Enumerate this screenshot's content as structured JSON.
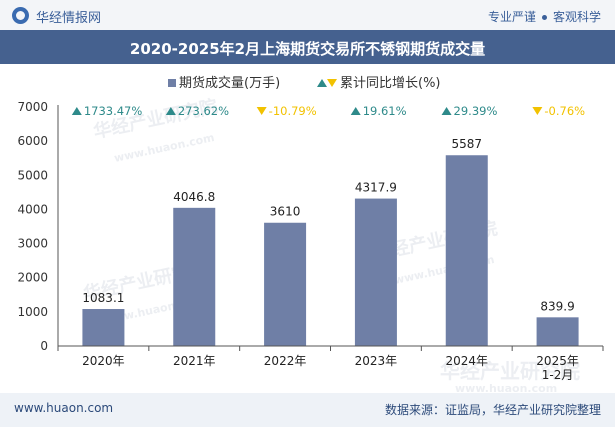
{
  "header": {
    "brand": "华经情报网",
    "tagline_left": "专业严谨",
    "tagline_right": "客观科学"
  },
  "chart_data": {
    "type": "bar",
    "title": "2020-2025年2月上海期货交易所不锈钢期货成交量",
    "categories": [
      "2020年",
      "2021年",
      "2022年",
      "2023年",
      "2024年",
      "2025年 1-2月"
    ],
    "series": [
      {
        "name": "期货成交量(万手)",
        "type": "bar",
        "values": [
          1083.1,
          4046.8,
          3610,
          4317.9,
          5587,
          839.9
        ],
        "value_labels": [
          "1083.1",
          "4046.8",
          "3610",
          "4317.9",
          "5587",
          "839.9"
        ],
        "color": "#6f7fa6"
      },
      {
        "name": "累计同比增长(%)",
        "values": [
          1733.47,
          273.62,
          -10.79,
          19.61,
          29.39,
          -0.76
        ],
        "value_labels": [
          "1733.47%",
          "273.62%",
          "-10.79%",
          "19.61%",
          "29.39%",
          "-0.76%"
        ],
        "up_color": "#2e8a8a",
        "down_color": "#f2c200"
      }
    ],
    "y_ticks": [
      "0",
      "1000",
      "2000",
      "3000",
      "4000",
      "5000",
      "6000",
      "7000"
    ],
    "ylim": [
      0,
      7000
    ],
    "legend_position": "top-center",
    "grid": false
  },
  "watermark": {
    "text_cn": "华经产业研究院",
    "text_url": "www.huaon.com"
  },
  "footer": {
    "url": "www.huaon.com",
    "source": "数据来源：证监局，华经产业研究院整理"
  }
}
